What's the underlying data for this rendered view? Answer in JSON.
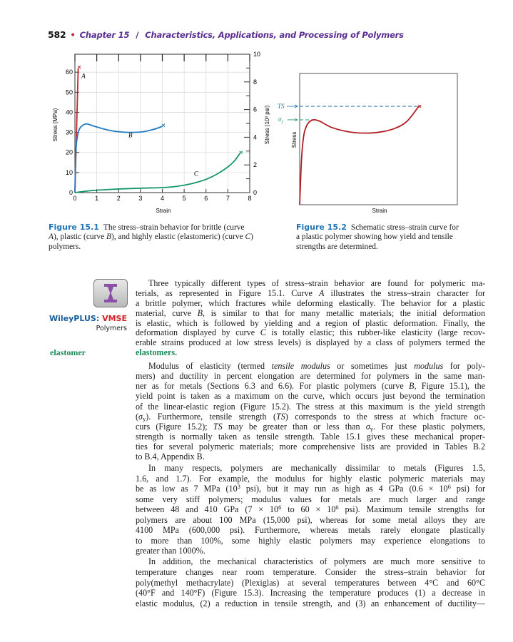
{
  "header": {
    "page_number": "582",
    "bullet": "•",
    "chapter": "Chapter 15",
    "separator": "/",
    "chapter_title": "Characteristics, Applications, and Processing of Polymers"
  },
  "colors": {
    "curve_a": "#c0262e",
    "curve_b": "#1f7cc0",
    "curve_c": "#16976a",
    "fig2_curve": "#b01e24",
    "ts_line": "#1f6ea8",
    "yield_line": "#2a9a7a",
    "figure_label": "#2276b8",
    "chapter": "#5a2e91",
    "key_term": "#1b8a57"
  },
  "chart_data": [
    {
      "type": "line",
      "xlabel": "Strain",
      "ylabel": "Stress (MPa)",
      "y2label": "Stress (10³ psi)",
      "xlim": [
        0,
        8
      ],
      "ylim": [
        0,
        68.95
      ],
      "y2lim": [
        0,
        10
      ],
      "xticks": [
        "0",
        "1",
        "2",
        "3",
        "4",
        "5",
        "6",
        "7",
        "8"
      ],
      "yticks": [
        "0",
        "10",
        "20",
        "30",
        "40",
        "50",
        "60"
      ],
      "y2ticks": [
        "0",
        "2",
        "4",
        "6",
        "8",
        "10"
      ],
      "grid": true,
      "series": [
        {
          "name": "A",
          "label_at": [
            0.3,
            57
          ],
          "x": [
            0,
            0.15
          ],
          "y": [
            0,
            62
          ],
          "fracture": true
        },
        {
          "name": "B",
          "label_at": [
            2.45,
            27.5
          ],
          "x": [
            0,
            0.04,
            0.1,
            0.2,
            0.35,
            0.55,
            0.9,
            1.5,
            2.1,
            2.6,
            3.1,
            3.6,
            4.0
          ],
          "y": [
            0,
            20,
            27,
            31.5,
            33.5,
            34.2,
            33,
            31.2,
            30.2,
            30,
            30.3,
            31.5,
            33
          ],
          "fracture": true
        },
        {
          "name": "C",
          "label_at": [
            5.45,
            8.3
          ],
          "x": [
            0,
            0.5,
            1,
            2,
            3,
            4,
            4.5,
            5,
            5.5,
            6,
            6.5,
            7,
            7.3,
            7.55
          ],
          "y": [
            0,
            0.7,
            1.2,
            1.8,
            2.2,
            2.5,
            2.9,
            3.7,
            4.9,
            6.6,
            9.2,
            12.8,
            15.8,
            19.5
          ],
          "fracture": true
        }
      ]
    },
    {
      "type": "line",
      "xlabel": "Strain",
      "ylabel": "Stress",
      "xlim": [
        0,
        100
      ],
      "ylim": [
        0,
        100
      ],
      "annotations": [
        {
          "label": "TS",
          "value": 75
        },
        {
          "label": "σ",
          "sub": "y",
          "value": 64.7
        }
      ],
      "series": [
        {
          "x": [
            0,
            1.2,
            2.5,
            4,
            6,
            9,
            13,
            20,
            30,
            40,
            50,
            60,
            68,
            75.5
          ],
          "y": [
            0,
            35,
            52,
            59,
            63,
            64.7,
            63.5,
            59,
            55.8,
            54.6,
            55.2,
            58,
            63.5,
            75
          ],
          "fracture": true
        }
      ]
    }
  ],
  "captions": {
    "fig1": {
      "label": "Figure 15.1",
      "lines": [
        [
          {
            "t": "The stress–strain behavior for brittle (curve"
          }
        ],
        [
          {
            "i": "A"
          },
          {
            "t": "), plastic (curve "
          },
          {
            "i": "B"
          },
          {
            "t": "), and highly elastic (elastomeric) (curve "
          },
          {
            "i": "C"
          },
          {
            "t": ")"
          }
        ],
        [
          {
            "t": "polymers."
          }
        ]
      ]
    },
    "fig2": {
      "label": "Figure 15.2",
      "lines": [
        [
          {
            "t": "Schematic stress–strain curve for"
          }
        ],
        [
          {
            "t": "a plastic polymer showing how yield and tensile"
          }
        ],
        [
          {
            "t": "strengths are determined."
          }
        ]
      ]
    }
  },
  "sidebar": {
    "wiley_brand": "WileyPLUS:",
    "wiley_vmse": "VMSE",
    "wiley_topic": "Polymers",
    "margin_term": "elastomer"
  },
  "body": {
    "paragraphs": [
      [
        [
          {
            "t": "Three typically different types of stress–strain behavior are found for polymeric ma-"
          }
        ],
        [
          {
            "t": "terials, as represented in Figure 15.1. Curve "
          },
          {
            "i": "A"
          },
          {
            "t": " illustrates the stress–strain character for"
          }
        ],
        [
          {
            "t": "a brittle polymer, which fractures while deforming elastically. The behavior for a plastic"
          }
        ],
        [
          {
            "t": "material, curve "
          },
          {
            "i": "B"
          },
          {
            "t": ", is similar to that for many metallic materials; the initial deformation"
          }
        ],
        [
          {
            "t": "is elastic, which is followed by yielding and a region of plastic deformation. Finally, the"
          }
        ],
        [
          {
            "t": "deformation displayed by curve "
          },
          {
            "i": "C"
          },
          {
            "t": " is totally elastic; this rubber-like elasticity (large recov-"
          }
        ],
        [
          {
            "t": "erable strains produced at low stress levels) is displayed by a class of polymers termed the"
          }
        ],
        [
          {
            "k": "elastomers."
          }
        ]
      ],
      [
        [
          {
            "t": "Modulus of elasticity (termed "
          },
          {
            "i": "tensile modulus"
          },
          {
            "t": " or sometimes just "
          },
          {
            "i": "modulus"
          },
          {
            "t": " for poly-"
          }
        ],
        [
          {
            "t": "mers) and ductility in percent elongation are determined for polymers in the same man-"
          }
        ],
        [
          {
            "t": "ner as for metals (Sections 6.3 and 6.6). For plastic polymers (curve "
          },
          {
            "i": "B"
          },
          {
            "t": ", Figure 15.1), the"
          }
        ],
        [
          {
            "t": "yield point is taken as a maximum on the curve, which occurs just beyond the termination"
          }
        ],
        [
          {
            "t": "of the linear-elastic region (Figure 15.2). The stress at this maximum is the yield strength"
          }
        ],
        [
          {
            "t": "("
          },
          {
            "i": "σ"
          },
          {
            "sub": "y"
          },
          {
            "t": "). Furthermore, tensile strength ("
          },
          {
            "i": "TS"
          },
          {
            "t": ") corresponds to the stress at which fracture oc-"
          }
        ],
        [
          {
            "t": "curs (Figure 15.2); "
          },
          {
            "i": "TS"
          },
          {
            "t": " may be greater than or less than "
          },
          {
            "i": "σ"
          },
          {
            "sub": "y"
          },
          {
            "t": ". For these plastic polymers,"
          }
        ],
        [
          {
            "t": "strength is normally taken as tensile strength. Table 15.1 gives these mechanical proper-"
          }
        ],
        [
          {
            "t": "ties for several polymeric materials; more comprehensive lists are provided in Tables B.2"
          }
        ],
        [
          {
            "t": "to B.4, Appendix B."
          }
        ]
      ],
      [
        [
          {
            "t": "In many respects, polymers are mechanically dissimilar to metals (Figures 1.5,"
          }
        ],
        [
          {
            "t": "1.6, and 1.7). For example, the modulus for highly elastic polymeric materials may"
          }
        ],
        [
          {
            "t": "be as low as 7 MPa (10"
          },
          {
            "sup": "3"
          },
          {
            "t": " psi), but it may run as high as 4 GPa (0.6 × 10"
          },
          {
            "sup": "6"
          },
          {
            "t": " psi) for"
          }
        ],
        [
          {
            "t": "some very stiff polymers; modulus values for metals are much larger and range"
          }
        ],
        [
          {
            "t": "between 48 and 410 GPa (7 × 10"
          },
          {
            "sup": "6"
          },
          {
            "t": " to 60 × 10"
          },
          {
            "sup": "6"
          },
          {
            "t": " psi). Maximum tensile strengths for"
          }
        ],
        [
          {
            "t": "polymers are about 100 MPa (15,000 psi), whereas for some metal alloys they are"
          }
        ],
        [
          {
            "t": "4100 MPa (600,000 psi). Furthermore, whereas metals rarely elongate plastically"
          }
        ],
        [
          {
            "t": "to more than 100%, some highly elastic polymers may experience elongations to"
          }
        ],
        [
          {
            "t": "greater than 1000%."
          }
        ]
      ],
      [
        [
          {
            "t": "In addition, the mechanical characteristics of polymers are much more sensitive to"
          }
        ],
        [
          {
            "t": "temperature changes near room temperature. Consider the stress–strain behavior for"
          }
        ],
        [
          {
            "t": "poly(methyl methacrylate) (Plexiglas) at several temperatures between 4°C and 60°C"
          }
        ],
        [
          {
            "t": "(40°F and 140°F) (Figure 15.3). Increasing the temperature produces (1) a decrease in"
          }
        ],
        [
          {
            "t": "elastic modulus, (2) a reduction in tensile strength, and (3) an enhancement of ductility—"
          }
        ]
      ]
    ]
  }
}
